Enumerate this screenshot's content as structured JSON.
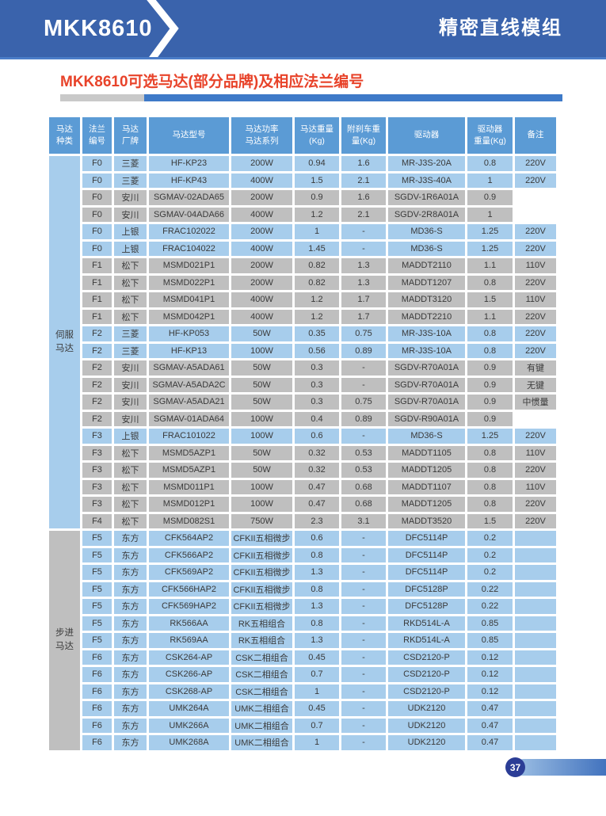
{
  "colors": {
    "topbar": "#3a63ac",
    "topbar-border": "#4a7cc8",
    "accent-red": "#e8432a",
    "bar-gray": "#c9c9c9",
    "bar-blue": "#3e7ac8",
    "th-blue": "#5b9bd5",
    "row-blue": "#a7cdec",
    "row-gray": "#bfbfbf",
    "cell-text": "#3a3a3a",
    "badge-navy": "#2b3d96",
    "grad-light": "#9dbfe4",
    "grad-dark": "#4273be"
  },
  "topbar": {
    "model": "MKK8610",
    "product_line": "精密直线模组"
  },
  "section_title": "MKK8610可选马达(部分品牌)及相应法兰编号",
  "footer": {
    "page_number": "37"
  },
  "table": {
    "row_keys": [
      "flange",
      "brand",
      "model",
      "power",
      "weight",
      "brake_weight",
      "driver",
      "driver_weight",
      "note"
    ],
    "columns": [
      {
        "key": "type",
        "label": "马达\n种类"
      },
      {
        "key": "flange",
        "label": "法兰\n编号"
      },
      {
        "key": "brand",
        "label": "马达\n厂牌"
      },
      {
        "key": "model",
        "label": "马达型号"
      },
      {
        "key": "power",
        "label": "马达功率\n马达系列"
      },
      {
        "key": "weight",
        "label": "马达重量\n(Kg)"
      },
      {
        "key": "brake_weight",
        "label": "附刹车重\n量(Kg)"
      },
      {
        "key": "driver",
        "label": "驱动器"
      },
      {
        "key": "driver_weight",
        "label": "驱动器\n重量(Kg)"
      },
      {
        "key": "note",
        "label": "备注"
      }
    ],
    "groups": [
      {
        "label": "伺服\n马达",
        "color": "blue",
        "rows": [
          {
            "flange": "F0",
            "brand": "三菱",
            "model": "HF-KP23",
            "power": "200W",
            "weight": "0.94",
            "brake_weight": "1.6",
            "driver": "MR-J3S-20A",
            "driver_weight": "0.8",
            "note": "220V",
            "color": "blue"
          },
          {
            "flange": "F0",
            "brand": "三菱",
            "model": "HF-KP43",
            "power": "400W",
            "weight": "1.5",
            "brake_weight": "2.1",
            "driver": "MR-J3S-40A",
            "driver_weight": "1",
            "note": "220V",
            "color": "blue"
          },
          {
            "flange": "F0",
            "brand": "安川",
            "model": "SGMAV-02ADA65",
            "power": "200W",
            "weight": "0.9",
            "brake_weight": "1.6",
            "driver": "SGDV-1R6A01A",
            "driver_weight": "0.9",
            "note": "",
            "color": "gray"
          },
          {
            "flange": "F0",
            "brand": "安川",
            "model": "SGMAV-04ADA66",
            "power": "400W",
            "weight": "1.2",
            "brake_weight": "2.1",
            "driver": "SGDV-2R8A01A",
            "driver_weight": "1",
            "note": "",
            "color": "gray"
          },
          {
            "flange": "F0",
            "brand": "上银",
            "model": "FRAC102022",
            "power": "200W",
            "weight": "1",
            "brake_weight": "-",
            "driver": "MD36-S",
            "driver_weight": "1.25",
            "note": "220V",
            "color": "blue"
          },
          {
            "flange": "F0",
            "brand": "上银",
            "model": "FRAC104022",
            "power": "400W",
            "weight": "1.45",
            "brake_weight": "-",
            "driver": "MD36-S",
            "driver_weight": "1.25",
            "note": "220V",
            "color": "blue"
          },
          {
            "flange": "F1",
            "brand": "松下",
            "model": "MSMD021P1",
            "power": "200W",
            "weight": "0.82",
            "brake_weight": "1.3",
            "driver": "MADDT2110",
            "driver_weight": "1.1",
            "note": "110V",
            "color": "gray"
          },
          {
            "flange": "F1",
            "brand": "松下",
            "model": "MSMD022P1",
            "power": "200W",
            "weight": "0.82",
            "brake_weight": "1.3",
            "driver": "MADDT1207",
            "driver_weight": "0.8",
            "note": "220V",
            "color": "gray"
          },
          {
            "flange": "F1",
            "brand": "松下",
            "model": "MSMD041P1",
            "power": "400W",
            "weight": "1.2",
            "brake_weight": "1.7",
            "driver": "MADDT3120",
            "driver_weight": "1.5",
            "note": "110V",
            "color": "gray"
          },
          {
            "flange": "F1",
            "brand": "松下",
            "model": "MSMD042P1",
            "power": "400W",
            "weight": "1.2",
            "brake_weight": "1.7",
            "driver": "MADDT2210",
            "driver_weight": "1.1",
            "note": "220V",
            "color": "gray"
          },
          {
            "flange": "F2",
            "brand": "三菱",
            "model": "HF-KP053",
            "power": "50W",
            "weight": "0.35",
            "brake_weight": "0.75",
            "driver": "MR-J3S-10A",
            "driver_weight": "0.8",
            "note": "220V",
            "color": "blue"
          },
          {
            "flange": "F2",
            "brand": "三菱",
            "model": "HF-KP13",
            "power": "100W",
            "weight": "0.56",
            "brake_weight": "0.89",
            "driver": "MR-J3S-10A",
            "driver_weight": "0.8",
            "note": "220V",
            "color": "blue"
          },
          {
            "flange": "F2",
            "brand": "安川",
            "model": "SGMAV-A5ADA61",
            "power": "50W",
            "weight": "0.3",
            "brake_weight": "-",
            "driver": "SGDV-R70A01A",
            "driver_weight": "0.9",
            "note": "有键",
            "color": "gray"
          },
          {
            "flange": "F2",
            "brand": "安川",
            "model": "SGMAV-A5ADA2C",
            "power": "50W",
            "weight": "0.3",
            "brake_weight": "-",
            "driver": "SGDV-R70A01A",
            "driver_weight": "0.9",
            "note": "无键",
            "color": "gray"
          },
          {
            "flange": "F2",
            "brand": "安川",
            "model": "SGMAV-A5ADA21",
            "power": "50W",
            "weight": "0.3",
            "brake_weight": "0.75",
            "driver": "SGDV-R70A01A",
            "driver_weight": "0.9",
            "note": "中惯量",
            "color": "gray"
          },
          {
            "flange": "F2",
            "brand": "安川",
            "model": "SGMAV-01ADA64",
            "power": "100W",
            "weight": "0.4",
            "brake_weight": "0.89",
            "driver": "SGDV-R90A01A",
            "driver_weight": "0.9",
            "note": "",
            "color": "gray"
          },
          {
            "flange": "F3",
            "brand": "上银",
            "model": "FRAC101022",
            "power": "100W",
            "weight": "0.6",
            "brake_weight": "-",
            "driver": "MD36-S",
            "driver_weight": "1.25",
            "note": "220V",
            "color": "blue"
          },
          {
            "flange": "F3",
            "brand": "松下",
            "model": "MSMD5AZP1",
            "power": "50W",
            "weight": "0.32",
            "brake_weight": "0.53",
            "driver": "MADDT1105",
            "driver_weight": "0.8",
            "note": "110V",
            "color": "gray"
          },
          {
            "flange": "F3",
            "brand": "松下",
            "model": "MSMD5AZP1",
            "power": "50W",
            "weight": "0.32",
            "brake_weight": "0.53",
            "driver": "MADDT1205",
            "driver_weight": "0.8",
            "note": "220V",
            "color": "gray"
          },
          {
            "flange": "F3",
            "brand": "松下",
            "model": "MSMD011P1",
            "power": "100W",
            "weight": "0.47",
            "brake_weight": "0.68",
            "driver": "MADDT1107",
            "driver_weight": "0.8",
            "note": "110V",
            "color": "gray"
          },
          {
            "flange": "F3",
            "brand": "松下",
            "model": "MSMD012P1",
            "power": "100W",
            "weight": "0.47",
            "brake_weight": "0.68",
            "driver": "MADDT1205",
            "driver_weight": "0.8",
            "note": "220V",
            "color": "gray"
          },
          {
            "flange": "F4",
            "brand": "松下",
            "model": "MSMD082S1",
            "power": "750W",
            "weight": "2.3",
            "brake_weight": "3.1",
            "driver": "MADDT3520",
            "driver_weight": "1.5",
            "note": "220V",
            "color": "gray"
          }
        ]
      },
      {
        "label": "步进\n马达",
        "color": "gray",
        "rows": [
          {
            "flange": "F5",
            "brand": "东方",
            "model": "CFK564AP2",
            "power": "CFKII五相微步",
            "weight": "0.6",
            "brake_weight": "-",
            "driver": "DFC5114P",
            "driver_weight": "0.2",
            "note": "",
            "color": "blue"
          },
          {
            "flange": "F5",
            "brand": "东方",
            "model": "CFK566AP2",
            "power": "CFKII五相微步",
            "weight": "0.8",
            "brake_weight": "-",
            "driver": "DFC5114P",
            "driver_weight": "0.2",
            "note": "",
            "color": "blue"
          },
          {
            "flange": "F5",
            "brand": "东方",
            "model": "CFK569AP2",
            "power": "CFKII五相微步",
            "weight": "1.3",
            "brake_weight": "-",
            "driver": "DFC5114P",
            "driver_weight": "0.2",
            "note": "",
            "color": "blue"
          },
          {
            "flange": "F5",
            "brand": "东方",
            "model": "CFK566HAP2",
            "power": "CFKII五相微步",
            "weight": "0.8",
            "brake_weight": "-",
            "driver": "DFC5128P",
            "driver_weight": "0.22",
            "note": "",
            "color": "blue"
          },
          {
            "flange": "F5",
            "brand": "东方",
            "model": "CFK569HAP2",
            "power": "CFKII五相微步",
            "weight": "1.3",
            "brake_weight": "-",
            "driver": "DFC5128P",
            "driver_weight": "0.22",
            "note": "",
            "color": "blue"
          },
          {
            "flange": "F5",
            "brand": "东方",
            "model": "RK566AA",
            "power": "RK五相组合",
            "weight": "0.8",
            "brake_weight": "-",
            "driver": "RKD514L-A",
            "driver_weight": "0.85",
            "note": "",
            "color": "blue"
          },
          {
            "flange": "F5",
            "brand": "东方",
            "model": "RK569AA",
            "power": "RK五相组合",
            "weight": "1.3",
            "brake_weight": "-",
            "driver": "RKD514L-A",
            "driver_weight": "0.85",
            "note": "",
            "color": "blue"
          },
          {
            "flange": "F6",
            "brand": "东方",
            "model": "CSK264-AP",
            "power": "CSK二相组合",
            "weight": "0.45",
            "brake_weight": "-",
            "driver": "CSD2120-P",
            "driver_weight": "0.12",
            "note": "",
            "color": "blue"
          },
          {
            "flange": "F6",
            "brand": "东方",
            "model": "CSK266-AP",
            "power": "CSK二相组合",
            "weight": "0.7",
            "brake_weight": "-",
            "driver": "CSD2120-P",
            "driver_weight": "0.12",
            "note": "",
            "color": "blue"
          },
          {
            "flange": "F6",
            "brand": "东方",
            "model": "CSK268-AP",
            "power": "CSK二相组合",
            "weight": "1",
            "brake_weight": "-",
            "driver": "CSD2120-P",
            "driver_weight": "0.12",
            "note": "",
            "color": "blue"
          },
          {
            "flange": "F6",
            "brand": "东方",
            "model": "UMK264A",
            "power": "UMK二相组合",
            "weight": "0.45",
            "brake_weight": "-",
            "driver": "UDK2120",
            "driver_weight": "0.47",
            "note": "",
            "color": "blue"
          },
          {
            "flange": "F6",
            "brand": "东方",
            "model": "UMK266A",
            "power": "UMK二相组合",
            "weight": "0.7",
            "brake_weight": "-",
            "driver": "UDK2120",
            "driver_weight": "0.47",
            "note": "",
            "color": "blue"
          },
          {
            "flange": "F6",
            "brand": "东方",
            "model": "UMK268A",
            "power": "UMK二相组合",
            "weight": "1",
            "brake_weight": "-",
            "driver": "UDK2120",
            "driver_weight": "0.47",
            "note": "",
            "color": "blue"
          }
        ]
      }
    ]
  }
}
